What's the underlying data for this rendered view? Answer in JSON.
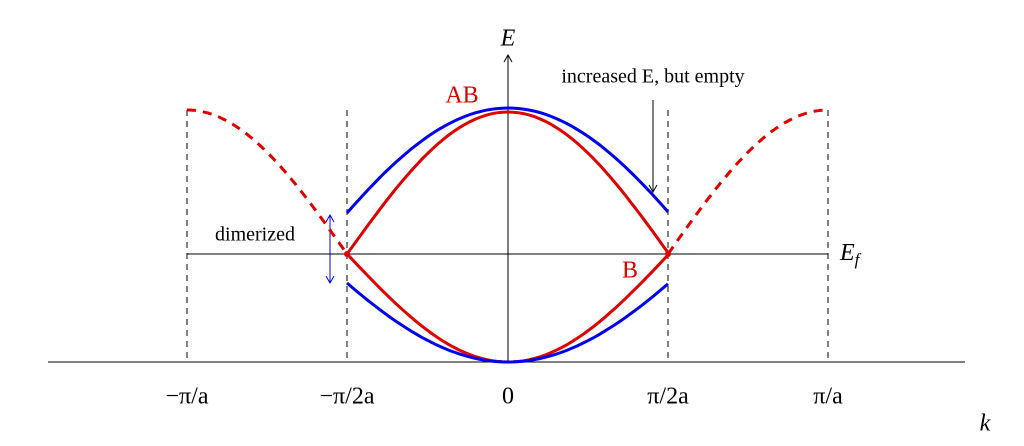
{
  "axes": {
    "energy": "E",
    "momentum": "k",
    "fermi": {
      "symbol": "E",
      "subscript": "f"
    }
  },
  "band_labels": {
    "antibonding": "AB",
    "bonding": "B"
  },
  "annotations": {
    "empty": "increased E, but empty",
    "gap": "dimerized"
  },
  "k_ticks": [
    "−π/a",
    "−π/2a",
    "0",
    "π/2a",
    "π/a"
  ]
}
